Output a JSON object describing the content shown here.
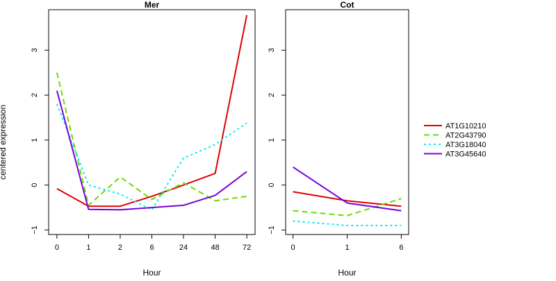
{
  "chart_data": [
    {
      "type": "line",
      "title": "Mer",
      "xlabel": "Hour",
      "ylabel": "centered expression",
      "categories": [
        "0",
        "1",
        "2",
        "6",
        "24",
        "48",
        "72"
      ],
      "ylim": [
        -1.1,
        3.9
      ],
      "yticks": [
        -1,
        0,
        1,
        2,
        3
      ],
      "grid": false,
      "series": [
        {
          "name": "AT1G10210",
          "color": "#dd0000",
          "dash": "solid",
          "values": [
            -0.08,
            -0.47,
            -0.47,
            -0.25,
            0.0,
            0.26,
            3.78
          ]
        },
        {
          "name": "AT2G43790",
          "color": "#66dd00",
          "dash": "dashed",
          "values": [
            2.5,
            -0.45,
            0.18,
            -0.32,
            0.05,
            -0.35,
            -0.25
          ]
        },
        {
          "name": "AT3G18040",
          "color": "#00eeee",
          "dash": "dotted",
          "values": [
            1.8,
            0.0,
            -0.2,
            -0.55,
            0.6,
            0.9,
            1.38
          ]
        },
        {
          "name": "AT3G45640",
          "color": "#7700dd",
          "dash": "solid",
          "values": [
            2.1,
            -0.54,
            -0.55,
            -0.5,
            -0.45,
            -0.23,
            0.3
          ]
        }
      ]
    },
    {
      "type": "line",
      "title": "Cot",
      "xlabel": "Hour",
      "ylabel": "",
      "categories": [
        "0",
        "1",
        "6"
      ],
      "ylim": [
        -1.1,
        3.9
      ],
      "yticks": [
        -1,
        0,
        1,
        2,
        3
      ],
      "grid": false,
      "series": [
        {
          "name": "AT1G10210",
          "color": "#dd0000",
          "dash": "solid",
          "values": [
            -0.15,
            -0.35,
            -0.47
          ]
        },
        {
          "name": "AT2G43790",
          "color": "#66dd00",
          "dash": "dashed",
          "values": [
            -0.57,
            -0.68,
            -0.3
          ]
        },
        {
          "name": "AT3G18040",
          "color": "#00eeee",
          "dash": "dotted",
          "values": [
            -0.8,
            -0.9,
            -0.9
          ]
        },
        {
          "name": "AT3G45640",
          "color": "#7700dd",
          "dash": "solid",
          "values": [
            0.4,
            -0.4,
            -0.57
          ]
        }
      ]
    }
  ],
  "legend": {
    "placement": "right",
    "entries": [
      {
        "name": "AT1G10210",
        "color": "#dd0000",
        "dash": "solid"
      },
      {
        "name": "AT2G43790",
        "color": "#66dd00",
        "dash": "dashed"
      },
      {
        "name": "AT3G18040",
        "color": "#00eeee",
        "dash": "dotted"
      },
      {
        "name": "AT3G45640",
        "color": "#7700dd",
        "dash": "solid"
      }
    ]
  }
}
